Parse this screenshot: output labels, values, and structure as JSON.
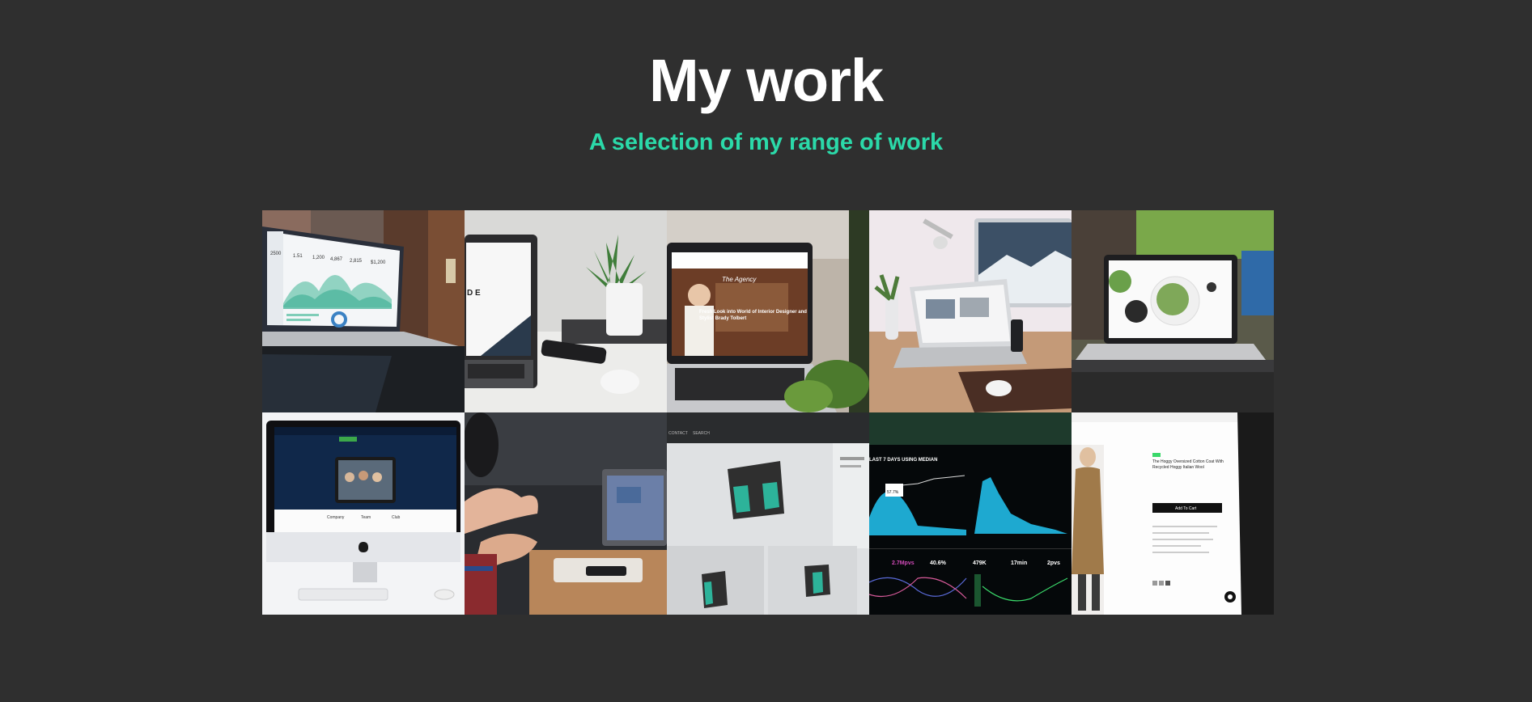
{
  "header": {
    "title": "My work",
    "subtitle": "A selection of my range of work"
  },
  "colors": {
    "background": "#2f2f2f",
    "accent": "#2bd9a9",
    "title": "#ffffff"
  },
  "gallery": {
    "items": [
      {
        "name": "analytics-dashboard-laptop",
        "screen_stats": [
          "2500",
          "1.51",
          "1,200",
          "4,867",
          "2,815",
          "$1,200"
        ]
      },
      {
        "name": "plant-desk-laptop",
        "screen_text": "D\nE"
      },
      {
        "name": "fashion-blog-laptop",
        "screen_headline": "Fresh Look into World of Interior Designer and Stylist Brady Tolbert",
        "screen_logo": "The Agency"
      },
      {
        "name": "imac-macbook-desk"
      },
      {
        "name": "food-website-laptop"
      },
      {
        "name": "imac-group-photo-site",
        "screen_columns": [
          "Company",
          "Team",
          "Club"
        ]
      },
      {
        "name": "meeting-hands-laptop"
      },
      {
        "name": "brand-logo-mockup",
        "screen_nav": [
          "CONTACT",
          "SEARCH"
        ]
      },
      {
        "name": "analytics-dark-dashboard",
        "screen_heading": "LAST 7 DAYS USING MEDIAN",
        "screen_metrics": [
          "2.7Mpvs",
          "40.6%",
          "479K",
          "17min",
          "2pvs"
        ],
        "screen_tooltip": "57.7%"
      },
      {
        "name": "fashion-product-page",
        "screen_product": "The Hoggy Oversized Cotton Coat With Recycled Hoggy Italian Wool",
        "screen_cta": "Add To Cart"
      }
    ]
  }
}
